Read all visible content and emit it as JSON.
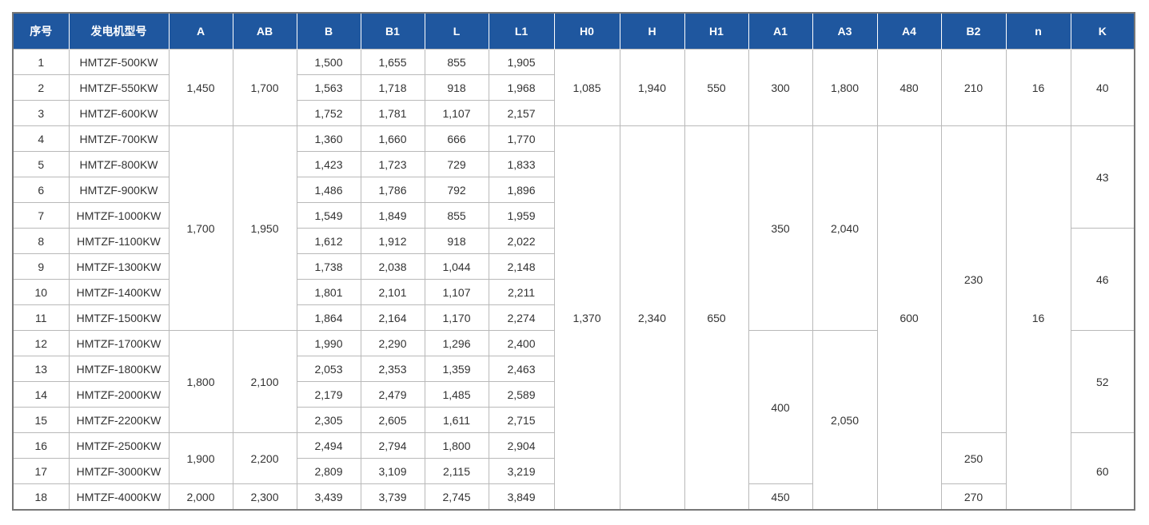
{
  "table": {
    "header": [
      "序号",
      "发电机型号",
      "A",
      "AB",
      "B",
      "B1",
      "L",
      "L1",
      "H0",
      "H",
      "H1",
      "A1",
      "A3",
      "A4",
      "B2",
      "n",
      "K"
    ],
    "rows": [
      [
        "1",
        "HMTZF-500KW",
        "1,450",
        "1,700",
        "1,500",
        "1,655",
        "855",
        "1,905",
        "1,085",
        "1,940",
        "550",
        "300",
        "1,800",
        "480",
        "210",
        "16",
        "40"
      ],
      [
        "2",
        "HMTZF-550KW",
        "1,563",
        "1,718",
        "918",
        "1,968"
      ],
      [
        "3",
        "HMTZF-600KW",
        "1,752",
        "1,781",
        "1,107",
        "2,157"
      ],
      [
        "4",
        "HMTZF-700KW",
        "1,700",
        "1,950",
        "1,360",
        "1,660",
        "666",
        "1,770",
        "1,370",
        "2,340",
        "650",
        "350",
        "2,040",
        "600",
        "230",
        "16",
        "43"
      ],
      [
        "5",
        "HMTZF-800KW",
        "1,423",
        "1,723",
        "729",
        "1,833"
      ],
      [
        "6",
        "HMTZF-900KW",
        "1,486",
        "1,786",
        "792",
        "1,896"
      ],
      [
        "7",
        "HMTZF-1000KW",
        "1,549",
        "1,849",
        "855",
        "1,959"
      ],
      [
        "8",
        "HMTZF-1100KW",
        "1,612",
        "1,912",
        "918",
        "2,022",
        "46"
      ],
      [
        "9",
        "HMTZF-1300KW",
        "1,738",
        "2,038",
        "1,044",
        "2,148"
      ],
      [
        "10",
        "HMTZF-1400KW",
        "1,801",
        "2,101",
        "1,107",
        "2,211"
      ],
      [
        "11",
        "HMTZF-1500KW",
        "1,864",
        "2,164",
        "1,170",
        "2,274"
      ],
      [
        "12",
        "HMTZF-1700KW",
        "1,800",
        "2,100",
        "1,990",
        "2,290",
        "1,296",
        "2,400",
        "400",
        "2,050",
        "52"
      ],
      [
        "13",
        "HMTZF-1800KW",
        "2,053",
        "2,353",
        "1,359",
        "2,463"
      ],
      [
        "14",
        "HMTZF-2000KW",
        "2,179",
        "2,479",
        "1,485",
        "2,589"
      ],
      [
        "15",
        "HMTZF-2200KW",
        "2,305",
        "2,605",
        "1,611",
        "2,715"
      ],
      [
        "16",
        "HMTZF-2500KW",
        "1,900",
        "2,200",
        "2,494",
        "2,794",
        "1,800",
        "2,904",
        "250",
        "60"
      ],
      [
        "17",
        "HMTZF-3000KW",
        "2,809",
        "3,109",
        "2,115",
        "3,219"
      ],
      [
        "18",
        "HMTZF-4000KW",
        "2,000",
        "2,300",
        "3,439",
        "3,739",
        "2,745",
        "3,849",
        "450",
        "270"
      ]
    ]
  }
}
